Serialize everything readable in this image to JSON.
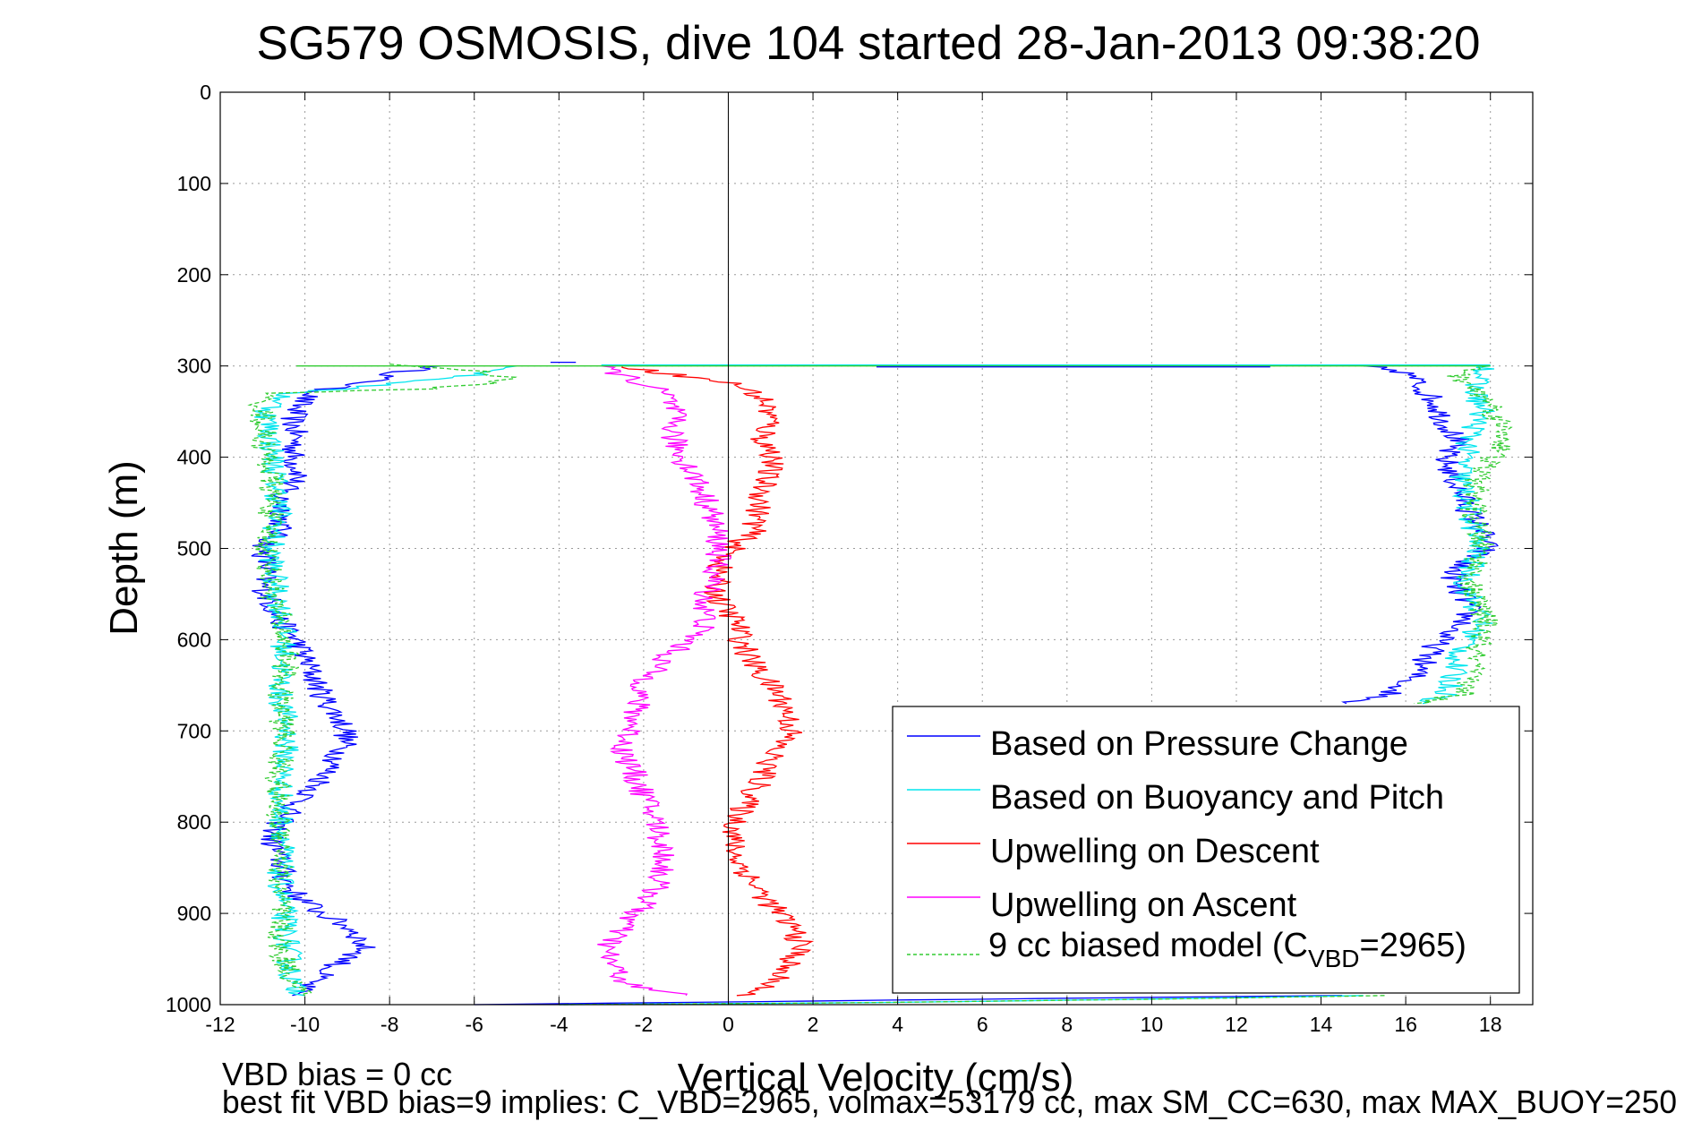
{
  "chart_data": {
    "type": "line",
    "title": "SG579 OSMOSIS, dive 104 started 28-Jan-2013 09:38:20",
    "xlabel": "Vertical Velocity (cm/s)",
    "ylabel": "Depth (m)",
    "xlim": [
      -12,
      19
    ],
    "ylim": [
      1000,
      0
    ],
    "xticks": [
      "-12",
      "-10",
      "-8",
      "-6",
      "-4",
      "-2",
      "0",
      "2",
      "4",
      "6",
      "8",
      "10",
      "12",
      "14",
      "16",
      "18"
    ],
    "yticks": [
      "0",
      "100",
      "200",
      "300",
      "400",
      "500",
      "600",
      "700",
      "800",
      "900",
      "1000"
    ],
    "grid": true,
    "legend_position": "bottom-right",
    "legend": {
      "pressure": "Based on Pressure Change",
      "buoyancy": "Based on Buoyancy and Pitch",
      "descent": "Upwelling on Descent",
      "ascent": "Upwelling on Ascent",
      "model_prefix": "9 cc biased model (C",
      "model_sub": "VBD",
      "model_suffix": "=2965)"
    },
    "series": [
      {
        "key": "pressure",
        "color": "#0000ff",
        "dash": false,
        "segments": [
          {
            "depth": [
              300,
              305,
              310,
              318,
              325,
              335,
              345,
              360,
              380,
              400,
              420,
              440,
              460,
              480,
              500,
              520,
              540,
              560,
              580,
              600,
              620,
              640,
              660,
              680,
              700,
              720,
              740,
              760,
              780,
              800,
              820,
              840,
              860,
              880,
              900,
              920,
              940,
              960,
              980,
              990
            ],
            "v": [
              -6.8,
              -7.5,
              -8,
              -8.5,
              -9.5,
              -10,
              -10.2,
              -10.3,
              -10.2,
              -10.3,
              -10.1,
              -10.6,
              -10.5,
              -10.6,
              -11,
              -10.9,
              -11,
              -10.8,
              -10.6,
              -10.2,
              -10,
              -9.8,
              -9.6,
              -9.3,
              -9,
              -9.1,
              -9.4,
              -9.7,
              -10.2,
              -10.6,
              -10.8,
              -10.6,
              -10.5,
              -10.2,
              -9.6,
              -8.8,
              -8.6,
              -9.4,
              -10,
              -10.3
            ]
          },
          {
            "depth": [
              300,
              305,
              310,
              320,
              340,
              360,
              380,
              400,
              420,
              440,
              460,
              480,
              500,
              520,
              540,
              560,
              580,
              600,
              620,
              640,
              660,
              670
            ],
            "v": [
              15,
              15.8,
              16.1,
              16.3,
              16.7,
              16.9,
              17.2,
              16.9,
              17.1,
              17.3,
              17.5,
              17.8,
              17.9,
              17.2,
              17.1,
              17.5,
              17.4,
              16.8,
              16.5,
              16.2,
              15.6,
              14.6
            ]
          },
          {
            "depth": [
              990,
              993,
              996,
              998,
              1000
            ],
            "v": [
              14.5,
              8,
              2,
              -2,
              -6
            ]
          }
        ]
      },
      {
        "key": "buoyancy",
        "color": "#00e5ee",
        "dash": false,
        "segments": [
          {
            "depth": [
              300,
              310,
              320,
              330,
              350,
              380,
              420,
              460,
              500,
              540,
              580,
              620,
              660,
              700,
              740,
              780,
              820,
              860,
              900,
              940,
              980,
              990
            ],
            "v": [
              -5,
              -6,
              -8,
              -10.4,
              -10.9,
              -10.8,
              -10.7,
              -10.6,
              -10.8,
              -10.7,
              -10.5,
              -10.5,
              -10.6,
              -10.4,
              -10.5,
              -10.6,
              -10.5,
              -10.6,
              -10.5,
              -10.4,
              -10.3,
              -10
            ]
          },
          {
            "depth": [
              300,
              320,
              350,
              380,
              420,
              460,
              500,
              540,
              580,
              620,
              660,
              670
            ],
            "v": [
              18,
              17.6,
              17.8,
              17.5,
              17.3,
              17.5,
              17.7,
              17.4,
              17.8,
              17.2,
              17.0,
              16.4
            ]
          },
          {
            "depth": [
              990,
              994,
              998,
              1000
            ],
            "v": [
              15,
              10,
              3,
              -4
            ]
          }
        ]
      },
      {
        "key": "descent",
        "color": "#ff0000",
        "dash": false,
        "segments": [
          {
            "depth": [
              300,
              310,
              320,
              330,
              340,
              360,
              380,
              400,
              420,
              440,
              460,
              480,
              500,
              520,
              540,
              560,
              580,
              600,
              620,
              640,
              660,
              680,
              700,
              720,
              740,
              760,
              780,
              800,
              820,
              840,
              860,
              880,
              900,
              920,
              940,
              960,
              980,
              990
            ],
            "v": [
              -2.5,
              -1.2,
              0.2,
              0.6,
              0.9,
              1,
              0.8,
              1.1,
              0.9,
              0.8,
              0.7,
              0.6,
              0.1,
              -0.2,
              -0.3,
              -0.2,
              0.2,
              0.3,
              0.5,
              0.8,
              1.2,
              1.4,
              1.5,
              1.1,
              0.9,
              0.7,
              0.4,
              0.2,
              0.1,
              0.2,
              0.5,
              0.8,
              1.2,
              1.6,
              1.7,
              1.3,
              1,
              0.2
            ]
          }
        ]
      },
      {
        "key": "ascent",
        "color": "#ff00ff",
        "dash": false,
        "segments": [
          {
            "depth": [
              300,
              310,
              330,
              350,
              380,
              400,
              420,
              440,
              460,
              480,
              500,
              520,
              540,
              560,
              580,
              600,
              620,
              640,
              660,
              680,
              700,
              720,
              740,
              760,
              780,
              800,
              820,
              840,
              860,
              880,
              900,
              920,
              940,
              960,
              980,
              990
            ],
            "v": [
              -3,
              -2.5,
              -1.5,
              -1.3,
              -1.3,
              -1.1,
              -0.8,
              -0.6,
              -0.4,
              -0.3,
              -0.2,
              -0.3,
              -0.4,
              -0.6,
              -0.5,
              -0.9,
              -1.5,
              -1.9,
              -2.1,
              -2.2,
              -2.3,
              -2.5,
              -2.3,
              -2.1,
              -1.9,
              -1.7,
              -1.6,
              -1.5,
              -1.6,
              -1.8,
              -2.2,
              -2.6,
              -2.9,
              -2.7,
              -2.3,
              -1
            ]
          }
        ]
      },
      {
        "key": "model",
        "color": "#33cc33",
        "dash": true,
        "segments": [
          {
            "depth": [
              298,
              305,
              315,
              325,
              330,
              350,
              380,
              420,
              460,
              500,
              540,
              580,
              620,
              660,
              700,
              740,
              780,
              820,
              860,
              900,
              940,
              980,
              990
            ],
            "v": [
              -8,
              -6,
              -5,
              -7,
              -11,
              -11,
              -11,
              -10.8,
              -10.8,
              -10.9,
              -10.8,
              -10.6,
              -10.4,
              -10.6,
              -10.5,
              -10.6,
              -10.7,
              -10.5,
              -10.6,
              -10.6,
              -10.6,
              -10.2,
              -10
            ]
          },
          {
            "depth": [
              300,
              310,
              340,
              380,
              420,
              460,
              500,
              540,
              580,
              620,
              660,
              670
            ],
            "v": [
              17.9,
              17.2,
              18,
              18.4,
              17.7,
              17.6,
              17.8,
              17.5,
              17.9,
              17.6,
              17.4,
              16.2
            ]
          },
          {
            "depth": [
              990,
              994,
              998,
              1000
            ],
            "v": [
              15.5,
              10,
              3,
              -4
            ]
          }
        ]
      }
    ],
    "footer_line1": "VBD bias = 0 cc",
    "footer_line2": "best fit VBD bias=9 implies: C_VBD=2965, volmax=53179 cc, max SM_CC=630, max MAX_BUOY=250"
  }
}
